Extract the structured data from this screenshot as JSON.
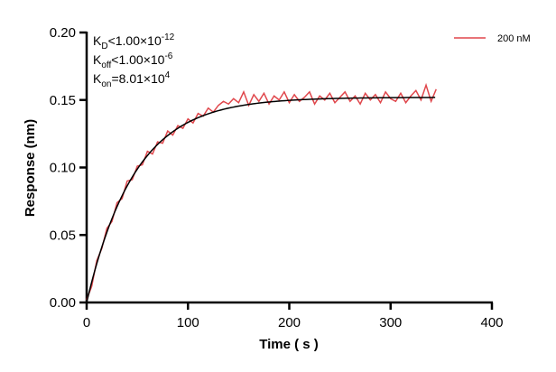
{
  "chart_data": {
    "type": "line",
    "xlabel": "Time ( s )",
    "ylabel": "Response (nm)",
    "xlim": [
      0,
      400
    ],
    "ylim": [
      0,
      0.2
    ],
    "xticks": [
      "0",
      "100",
      "200",
      "300",
      "400"
    ],
    "yticks": [
      "0.00",
      "0.05",
      "0.10",
      "0.15",
      "0.20"
    ],
    "grid": false,
    "legend_position": "top-right",
    "annotations": {
      "kd": {
        "base": "K",
        "sub": "D",
        "rel": "<1.00×10",
        "exp": "-12"
      },
      "koff": {
        "base": "K",
        "sub": "off",
        "rel": "<1.00×10",
        "exp": "-6"
      },
      "kon": {
        "base": "K",
        "sub": "on",
        "rel": "=8.01×10",
        "exp": "4"
      }
    },
    "series": [
      {
        "name": "200 nM",
        "color": "#e0474c",
        "x": [
          0,
          5,
          10,
          15,
          20,
          25,
          30,
          35,
          40,
          45,
          50,
          55,
          60,
          65,
          70,
          75,
          80,
          85,
          90,
          95,
          100,
          105,
          110,
          115,
          120,
          125,
          130,
          135,
          140,
          145,
          150,
          155,
          160,
          165,
          170,
          175,
          180,
          185,
          190,
          195,
          200,
          205,
          210,
          215,
          220,
          225,
          230,
          235,
          240,
          245,
          250,
          255,
          260,
          265,
          270,
          275,
          280,
          285,
          290,
          295,
          300,
          305,
          310,
          315,
          320,
          325,
          330,
          335,
          340,
          345
        ],
        "y": [
          0.002,
          0.012,
          0.031,
          0.04,
          0.055,
          0.06,
          0.074,
          0.077,
          0.09,
          0.091,
          0.101,
          0.102,
          0.112,
          0.11,
          0.119,
          0.118,
          0.127,
          0.124,
          0.131,
          0.129,
          0.136,
          0.133,
          0.14,
          0.138,
          0.144,
          0.141,
          0.146,
          0.149,
          0.147,
          0.151,
          0.148,
          0.156,
          0.146,
          0.154,
          0.149,
          0.155,
          0.147,
          0.153,
          0.15,
          0.156,
          0.148,
          0.154,
          0.149,
          0.152,
          0.156,
          0.147,
          0.153,
          0.15,
          0.155,
          0.148,
          0.152,
          0.156,
          0.149,
          0.153,
          0.147,
          0.155,
          0.15,
          0.154,
          0.148,
          0.156,
          0.151,
          0.149,
          0.155,
          0.148,
          0.153,
          0.157,
          0.15,
          0.161,
          0.149,
          0.158
        ]
      }
    ],
    "fit": {
      "color": "#000000",
      "plateau": 0.152,
      "k": 0.021,
      "x_end": 345
    }
  }
}
